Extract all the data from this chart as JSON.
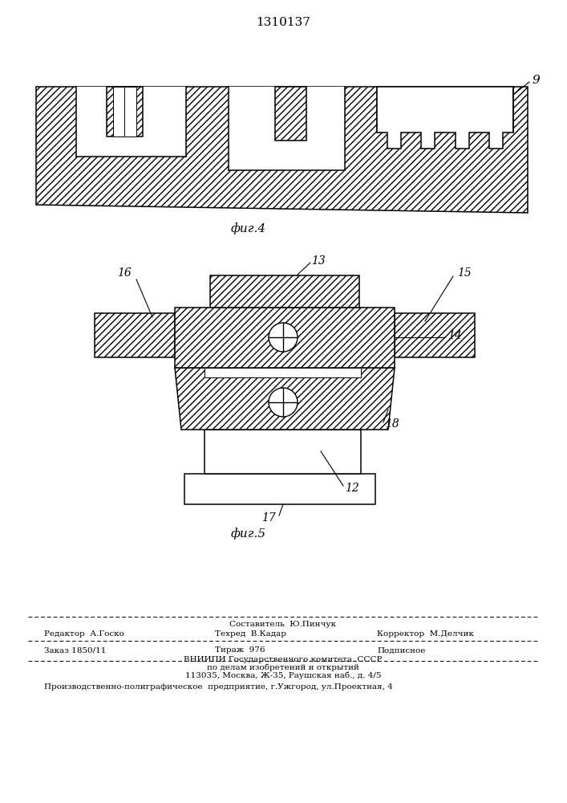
{
  "title": "1310137",
  "title_fontsize": 11,
  "fig4_label": "фиг.4",
  "fig5_label": "фиг.5",
  "label_9": "9",
  "label_12": "12",
  "label_13": "13",
  "label_14": "14",
  "label_15": "15",
  "label_16": "16",
  "label_17": "17",
  "label_18": "18",
  "hatch_pattern": "////",
  "line_color": "#000000",
  "face_color": "#ffffff",
  "bg_color": "#ffffff",
  "footer_line1": "Составитель  Ю.Пинчук",
  "footer_line2_left": "Редактор  А.Госко",
  "footer_line2_mid": "Техред  В.Кадар",
  "footer_line2_right": "Корректор  М.Делчик",
  "footer_line3_left": "Заказ 1850/11",
  "footer_line3_mid": "Тираж  976",
  "footer_line3_right": "Подписное",
  "footer_line4": "ВНИИПИ Государственного комитета  СССР",
  "footer_line5": "по делам изобретений и открытий",
  "footer_line6": "113035, Москва, Ж-35, Раушская наб., д. 4/5",
  "footer_line7": "Производственно-полиграфическое  предприятие, г.Ужгород, ул.Проектная, 4"
}
